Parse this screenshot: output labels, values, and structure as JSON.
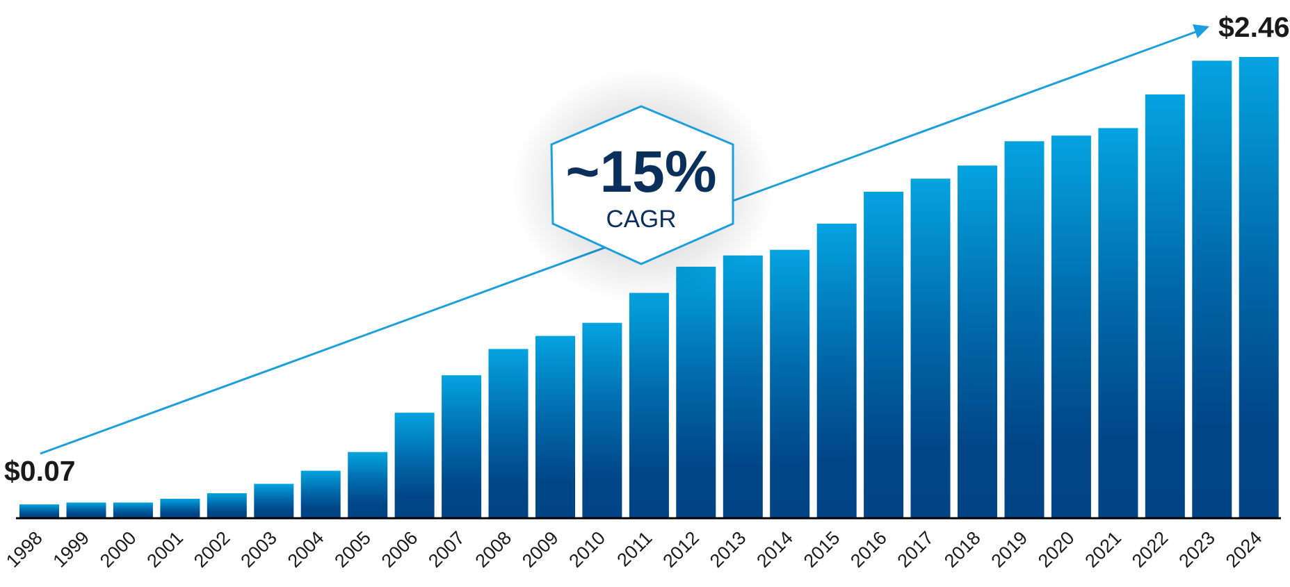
{
  "chart_data": {
    "type": "bar",
    "title": "",
    "xlabel": "",
    "ylabel": "",
    "ylim": [
      0,
      2.6
    ],
    "grid": false,
    "legend": null,
    "categories": [
      "1998",
      "1999",
      "2000",
      "2001",
      "2002",
      "2003",
      "2004",
      "2005",
      "2006",
      "2007",
      "2008",
      "2009",
      "2010",
      "2011",
      "2012",
      "2013",
      "2014",
      "2015",
      "2016",
      "2017",
      "2018",
      "2019",
      "2020",
      "2021",
      "2022",
      "2023",
      "2024"
    ],
    "values": [
      0.07,
      0.08,
      0.08,
      0.1,
      0.13,
      0.18,
      0.25,
      0.35,
      0.56,
      0.76,
      0.9,
      0.97,
      1.04,
      1.2,
      1.34,
      1.4,
      1.43,
      1.57,
      1.74,
      1.81,
      1.88,
      2.01,
      2.04,
      2.08,
      2.26,
      2.44,
      2.46
    ],
    "annotations": {
      "start_label": "$0.07",
      "end_label": "$2.46",
      "cagr_value": "~15%",
      "cagr_label": "CAGR",
      "trend_arrow": "from 1998 to 2024"
    }
  },
  "colors": {
    "bar_top": "#04a3e0",
    "bar_mid": "#0069aa",
    "bar_bottom": "#004687",
    "trend_line": "#1b9fdd",
    "hexagon_border": "#1b9fdd",
    "axis": "#000000",
    "text_dark": "#1a1a1a",
    "cagr_text": "#0b2f5b"
  }
}
